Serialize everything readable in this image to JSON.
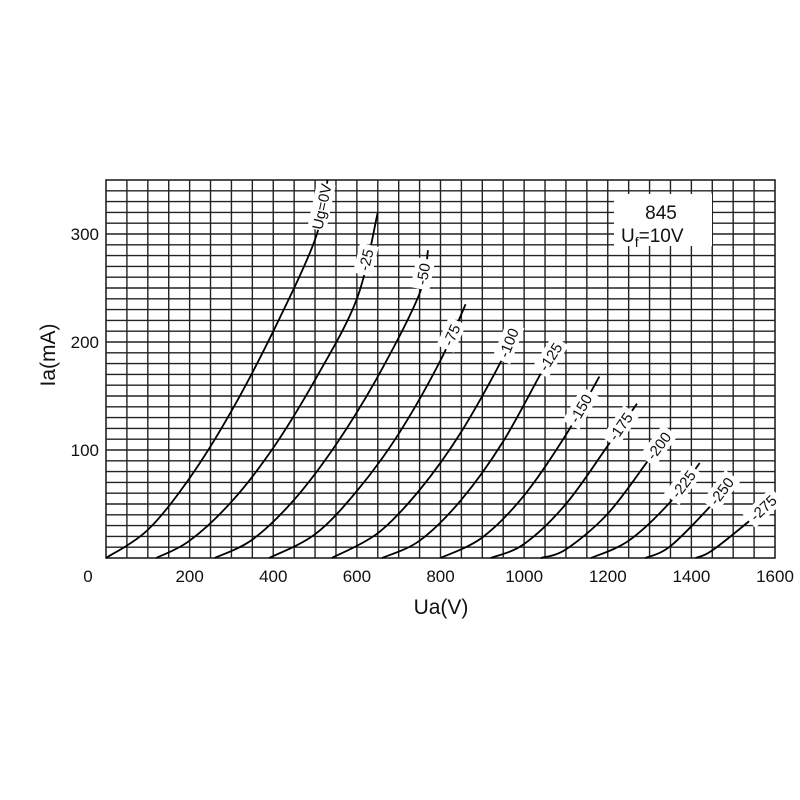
{
  "chart_data": {
    "type": "line",
    "title": "845",
    "subtitle_main": "U",
    "subtitle_sub": "f",
    "subtitle_rest": "=10V",
    "xlabel": "Ua(V)",
    "ylabel": "Ia(mA)",
    "xlim": [
      0,
      1600
    ],
    "ylim": [
      0,
      350
    ],
    "x_ticks": [
      0,
      200,
      400,
      600,
      800,
      1000,
      1200,
      1400,
      1600
    ],
    "y_ticks": [
      100,
      200,
      300
    ],
    "grid": true,
    "series": [
      {
        "name": "Ug=0V",
        "x": [
          0,
          100,
          200,
          300,
          400,
          500,
          530
        ],
        "y": [
          0,
          26,
          74,
          136,
          210,
          295,
          350
        ]
      },
      {
        "name": "-25",
        "x": [
          120,
          200,
          300,
          400,
          500,
          600,
          650
        ],
        "y": [
          0,
          16,
          52,
          102,
          165,
          240,
          320
        ]
      },
      {
        "name": "-50",
        "x": [
          260,
          350,
          450,
          550,
          650,
          750,
          770
        ],
        "y": [
          0,
          17,
          54,
          105,
          168,
          245,
          285
        ]
      },
      {
        "name": "-75",
        "x": [
          390,
          500,
          600,
          700,
          800,
          860
        ],
        "y": [
          0,
          22,
          62,
          115,
          183,
          235
        ]
      },
      {
        "name": "-100",
        "x": [
          540,
          650,
          750,
          850,
          950,
          980
        ],
        "y": [
          0,
          23,
          63,
          117,
          186,
          215
        ]
      },
      {
        "name": "-125",
        "x": [
          660,
          750,
          850,
          950,
          1050,
          1080
        ],
        "y": [
          0,
          16,
          54,
          108,
          178,
          196
        ]
      },
      {
        "name": "-150",
        "x": [
          800,
          900,
          1000,
          1100,
          1180
        ],
        "y": [
          0,
          19,
          58,
          114,
          168
        ]
      },
      {
        "name": "-175",
        "x": [
          920,
          1000,
          1100,
          1200,
          1270
        ],
        "y": [
          0,
          13,
          50,
          104,
          143
        ]
      },
      {
        "name": "-200",
        "x": [
          1040,
          1100,
          1200,
          1300,
          1350
        ],
        "y": [
          0,
          8,
          41,
          92,
          118
        ]
      },
      {
        "name": "-225",
        "x": [
          1160,
          1250,
          1350,
          1420
        ],
        "y": [
          0,
          16,
          52,
          88
        ]
      },
      {
        "name": "-250",
        "x": [
          1290,
          1350,
          1450,
          1500
        ],
        "y": [
          0,
          11,
          50,
          76
        ]
      },
      {
        "name": "-275",
        "x": [
          1410,
          1450,
          1550,
          1600
        ],
        "y": [
          0,
          7,
          38,
          56
        ]
      }
    ]
  }
}
